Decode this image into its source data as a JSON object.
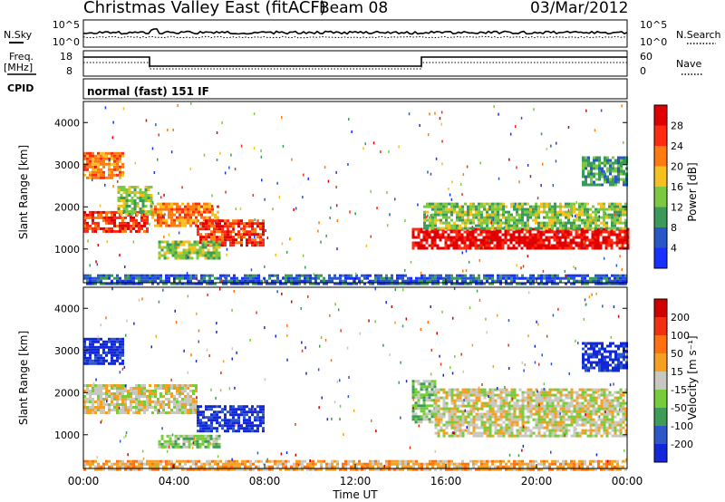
{
  "header": {
    "title": "Christmas Valley East (fitACF)",
    "beam": "Beam 08",
    "date": "03/Mar/2012"
  },
  "top_panels": {
    "nsky_label": "N.Sky",
    "nsky_ticks": [
      "10^5",
      "10^0"
    ],
    "nsearch_label": "N.Search",
    "nsearch_ticks": [
      "10^5",
      "10^0"
    ],
    "freq_label": "Freq.",
    "freq_unit": "[MHz]",
    "freq_ticks": [
      "18",
      "8"
    ],
    "nave_label": "Nave",
    "nave_ticks": [
      "60",
      "0"
    ],
    "cpid_label": "CPID",
    "cpid_value": "normal (fast) 151 IF"
  },
  "chart_data": [
    {
      "type": "heatmap",
      "name": "power",
      "ylabel": "Slant Range [km]",
      "ylim": [
        200,
        4500
      ],
      "yticks": [
        "4000",
        "3000",
        "2000",
        "1000"
      ],
      "xlim": [
        0,
        24
      ],
      "colorbar": {
        "label": "Power [dB]",
        "ticks": [
          "28",
          "24",
          "20",
          "16",
          "12",
          "8",
          "4"
        ],
        "colors": [
          "#1530ff",
          "#2a57c8",
          "#3a9a5a",
          "#7cc840",
          "#f5c020",
          "#ff7a10",
          "#ff2a10",
          "#e00000"
        ]
      },
      "echo_regions": [
        {
          "t0": 0.0,
          "t1": 1.8,
          "r0": 2700,
          "r1": 3300,
          "level": 5
        },
        {
          "t0": 0.0,
          "t1": 2.8,
          "r0": 1400,
          "r1": 1900,
          "level": 6
        },
        {
          "t0": 1.5,
          "t1": 3.0,
          "r0": 1800,
          "r1": 2500,
          "level": 3
        },
        {
          "t0": 3.0,
          "t1": 6.0,
          "r0": 1550,
          "r1": 2100,
          "level": 5
        },
        {
          "t0": 5.0,
          "t1": 8.0,
          "r0": 1100,
          "r1": 1700,
          "level": 6
        },
        {
          "t0": 3.3,
          "t1": 6.0,
          "r0": 800,
          "r1": 1200,
          "level": 3
        },
        {
          "t0": 14.5,
          "t1": 24.0,
          "r0": 1000,
          "r1": 1500,
          "level": 7
        },
        {
          "t0": 15.0,
          "t1": 24.0,
          "r0": 1500,
          "r1": 2100,
          "level": 3
        },
        {
          "t0": 22.0,
          "t1": 24.0,
          "r0": 2500,
          "r1": 3200,
          "level": 2
        },
        {
          "t0": 0.0,
          "t1": 24.0,
          "r0": 200,
          "r1": 400,
          "level": 1
        }
      ]
    },
    {
      "type": "heatmap",
      "name": "velocity",
      "ylabel": "Slant Range [km]",
      "ylim": [
        200,
        4500
      ],
      "yticks": [
        "4000",
        "3000",
        "2000",
        "1000"
      ],
      "xlim": [
        0,
        24
      ],
      "xticks": [
        "00:00",
        "04:00",
        "08:00",
        "12:00",
        "16:00",
        "20:00",
        "00:00"
      ],
      "xlabel": "Time UT",
      "colorbar": {
        "label": "Velocity [m s⁻¹]",
        "ticks": [
          "200",
          "100",
          "50",
          "15",
          "-15",
          "-50",
          "-100",
          "-200"
        ],
        "colors": [
          "#1228d8",
          "#2e58c8",
          "#3e9c56",
          "#76cc3a",
          "#c8c8c0",
          "#f5a020",
          "#ff7010",
          "#f03010",
          "#d00000"
        ]
      },
      "echo_regions": [
        {
          "t0": 0.0,
          "t1": 1.8,
          "r0": 2700,
          "r1": 3300,
          "level": 0
        },
        {
          "t0": 0.0,
          "t1": 5.0,
          "r0": 1500,
          "r1": 2200,
          "level": 4
        },
        {
          "t0": 5.0,
          "t1": 8.0,
          "r0": 1100,
          "r1": 1700,
          "level": 0
        },
        {
          "t0": 3.3,
          "t1": 6.0,
          "r0": 700,
          "r1": 1000,
          "level": 3
        },
        {
          "t0": 14.5,
          "t1": 15.5,
          "r0": 1300,
          "r1": 2300,
          "level": 3
        },
        {
          "t0": 15.5,
          "t1": 24.0,
          "r0": 1000,
          "r1": 2100,
          "level": 4
        },
        {
          "t0": 22.0,
          "t1": 24.0,
          "r0": 2500,
          "r1": 3200,
          "level": 0
        },
        {
          "t0": 0.0,
          "t1": 24.0,
          "r0": 200,
          "r1": 400,
          "level": 5
        }
      ]
    }
  ]
}
